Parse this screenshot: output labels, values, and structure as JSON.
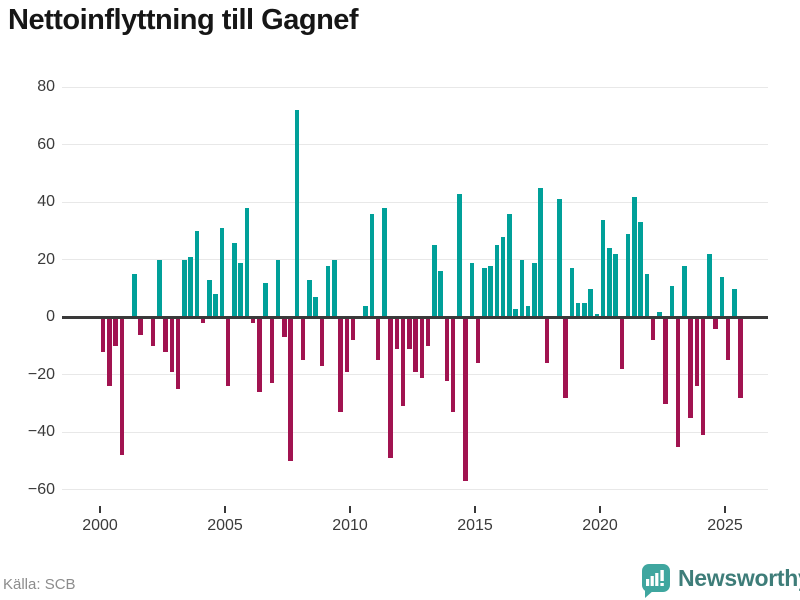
{
  "title": "Nettoinflyttning till Gagnef",
  "source": "Källa: SCB",
  "branding": {
    "logo_text": "Newsworthy",
    "logo_icon": "newsworthy-speech-bubble-bar-chart-icon"
  },
  "colors": {
    "positive": "#00a099",
    "negative": "#a11350",
    "grid": "#e8e8e8",
    "axis": "#3a3a3a",
    "title_text": "#161616",
    "source_text": "#8c8c8c",
    "brand_icon": "#3fa69f",
    "brand_text": "#3e7d79"
  },
  "chart_data": {
    "type": "bar",
    "title": "Nettoinflyttning till Gagnef",
    "frequency": "quarterly",
    "start_period": "2000Q1",
    "end_period": "2025Q3",
    "values": [
      -12,
      -24,
      -10,
      -48,
      0,
      15,
      -6,
      0,
      -10,
      20,
      -12,
      -19,
      -25,
      20,
      21,
      30,
      -2,
      13,
      8,
      31,
      -24,
      26,
      19,
      38,
      -2,
      -26,
      12,
      -23,
      20,
      -7,
      -50,
      72,
      -15,
      13,
      7,
      -17,
      18,
      20,
      -33,
      -19,
      -8,
      0,
      4,
      36,
      -15,
      38,
      -49,
      -11,
      -31,
      -11,
      -19,
      -21,
      -10,
      25,
      16,
      -22,
      -33,
      43,
      -57,
      19,
      -16,
      17,
      18,
      25,
      28,
      36,
      3,
      20,
      4,
      19,
      45,
      -16,
      0,
      41,
      -28,
      17,
      5,
      5,
      10,
      1,
      34,
      24,
      22,
      -18,
      29,
      42,
      33,
      15,
      -8,
      2,
      -30,
      11,
      -45,
      18,
      -35,
      -24,
      -41,
      22,
      -4,
      14,
      -15,
      10,
      -28
    ],
    "yticks": [
      80,
      60,
      40,
      20,
      0,
      -20,
      -40,
      -60
    ],
    "ylim": [
      -60,
      80
    ],
    "xticks": [
      2000,
      2005,
      2010,
      2015,
      2020,
      2025
    ],
    "xlabel": "",
    "ylabel": "",
    "grid": true,
    "legend": "none",
    "positive_color": "#00a099",
    "negative_color": "#a11350"
  }
}
